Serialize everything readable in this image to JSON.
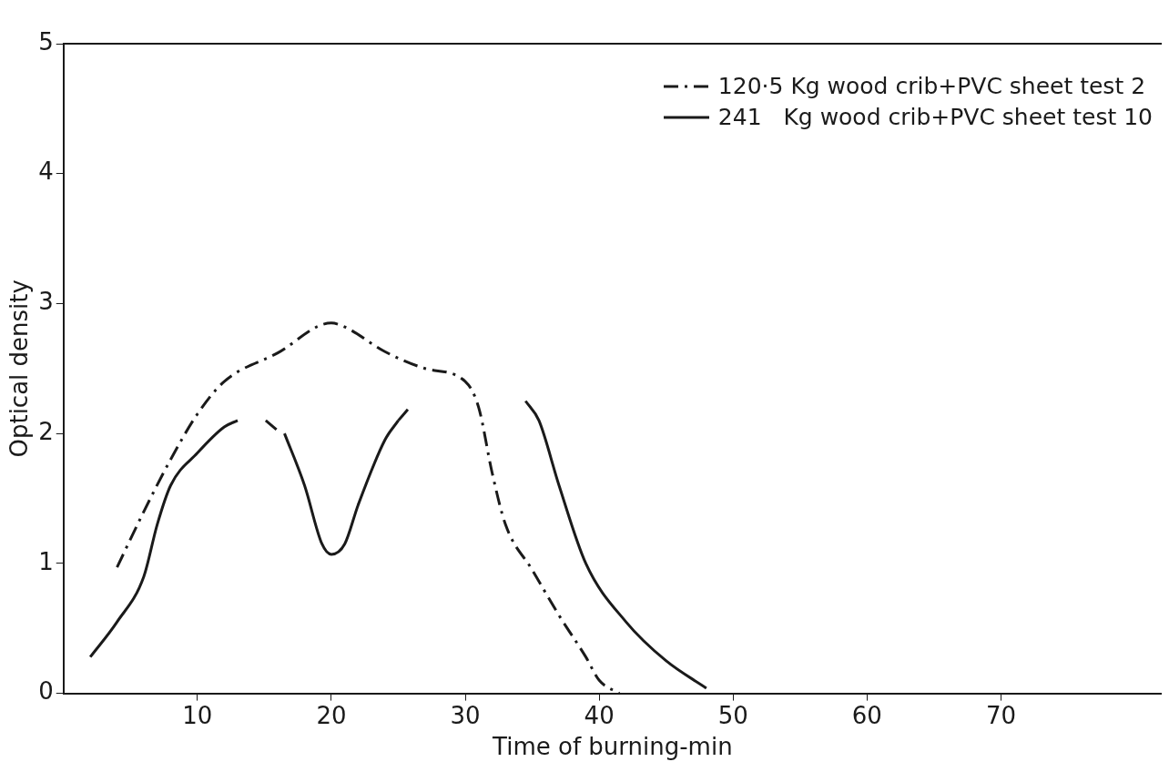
{
  "chart_data": {
    "type": "line",
    "xlabel": "Time of burning-min",
    "ylabel": "Optical density",
    "xlim": [
      0,
      82
    ],
    "xticks": [
      10,
      20,
      30,
      40,
      50,
      60,
      70
    ],
    "ylim": [
      0,
      5
    ],
    "yticks": [
      0,
      1,
      2,
      3,
      4,
      5
    ],
    "grid": false,
    "legend": "top right",
    "marker": "none",
    "series": [
      {
        "name": "120·5 Kg wood crib+PVC sheet test 2",
        "color": "#1a1a1a",
        "line_style": "dashed",
        "x": [
          4,
          6,
          8,
          10,
          12,
          16,
          20,
          21,
          24,
          27,
          30,
          31,
          32,
          33,
          35,
          37,
          39,
          40,
          41.5
        ],
        "values": [
          0.97,
          1.4,
          1.8,
          2.15,
          2.4,
          2.62,
          2.85,
          2.82,
          2.63,
          2.5,
          2.4,
          2.2,
          1.7,
          1.3,
          0.95,
          0.6,
          0.28,
          0.1,
          0
        ]
      },
      {
        "name": "241   Kg wood crib+PVC sheet test 10",
        "color": "#1a1a1a",
        "line_style": "solid",
        "x": [
          2,
          4,
          6,
          7,
          8,
          10,
          12,
          13,
          14.5,
          16.5,
          18,
          19.3,
          20,
          21,
          22,
          24,
          25,
          30,
          34.5,
          35.5,
          37,
          39,
          42,
          45,
          48
        ],
        "values": [
          0.28,
          0.55,
          0.9,
          1.3,
          1.6,
          1.85,
          2.05,
          2.1,
          null,
          2.0,
          1.6,
          1.15,
          1.07,
          1.15,
          1.45,
          1.95,
          2.1,
          null,
          2.25,
          2.1,
          1.6,
          1.0,
          0.55,
          0.25,
          0.04
        ]
      },
      {
        "color": "#1a1a1a",
        "line_style": "dashed",
        "x": [
          15.1,
          15.9,
          20,
          25,
          26
        ],
        "values": [
          2.1,
          2.03,
          null,
          2.1,
          2.22
        ]
      }
    ]
  }
}
